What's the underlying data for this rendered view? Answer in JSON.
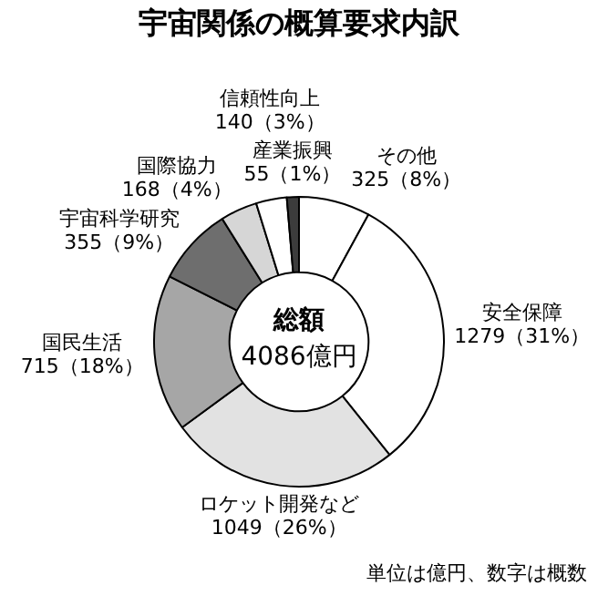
{
  "chart_data": {
    "type": "donut",
    "title": "宇宙関係の概算要求内訳",
    "categories": [
      "その他",
      "安全保障",
      "ロケット開発など",
      "国民生活",
      "宇宙科学研究",
      "国際協力",
      "信頼性向上",
      "産業振興"
    ],
    "values": [
      325,
      1279,
      1049,
      715,
      355,
      168,
      140,
      55
    ],
    "colors": [
      "#ffffff",
      "#ffffff",
      "#e2e2e2",
      "#a6a6a6",
      "#6e6e6e",
      "#d6d6d6",
      "#ffffff",
      "#3c3c3c"
    ],
    "value_labels": [
      "325（8%）",
      "1279（31%）",
      "1049（26%）",
      "715（18%）",
      "355（9%）",
      "168（4%）",
      "140（3%）",
      "55（1%）"
    ],
    "annotations": [
      "総額",
      "4086億円",
      "単位は億円、数字は概数"
    ]
  }
}
